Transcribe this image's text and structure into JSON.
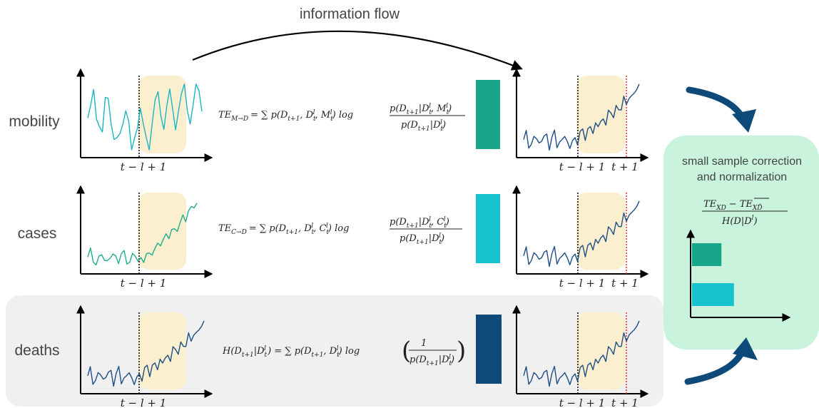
{
  "flow": {
    "label": "information flow"
  },
  "rows": [
    {
      "label": "mobility",
      "formula": "TEₘ→ᴅ = ∑ p(Dₜ₊₁, Dₜˡ, Mₜˡ) log p(Dₜ₊₁|Dₜˡ, Mₜˡ) / p(Dₜ₊₁|Dₜˡ)",
      "formula_lhs": "TE",
      "formula_lhs_sub": "M→D",
      "formula_rhs": "= ∑ p(D",
      "formula_num": "p(D",
      "formula_den": "p(D",
      "bar_color": "#17a589"
    },
    {
      "label": "cases",
      "formula_lhs": "TE",
      "formula_lhs_sub": "C→D",
      "bar_color": "#17c3cf"
    },
    {
      "label": "deaths",
      "formula_lhs": "H(D",
      "bar_color": "#0d4a7a"
    }
  ],
  "axis": {
    "lag_tick": "t − l + 1",
    "next_tick": "t + 1"
  },
  "formulas": {
    "mobility": [
      "TE",
      "M→D",
      "= ∑ p(D",
      "t+1",
      ", D",
      "t",
      "l",
      ", M",
      "t",
      "l",
      ") log",
      "p(D",
      "t+1",
      "|D",
      "t",
      "l",
      ", M",
      "t",
      "l",
      ")",
      "p(D",
      "t+1",
      "|D",
      "t",
      "l",
      ")"
    ],
    "cases": [
      "TE",
      "C→D",
      "= ∑ p(D",
      "t+1",
      ", D",
      "t",
      "l",
      ", C",
      "t",
      "l",
      ") log",
      "p(D",
      "t+1",
      "|D",
      "t",
      "l",
      ", C",
      "t",
      "l",
      ")",
      "p(D",
      "t+1",
      "|D",
      "t",
      "l",
      ")"
    ],
    "deaths": [
      "H(D",
      "t+1",
      "|D",
      "t",
      "l",
      ") = ∑ p(D",
      "t+1",
      ", D",
      "t",
      "l",
      ") log",
      "1",
      "p(D",
      "t+1",
      "|D",
      "t",
      "l",
      ")"
    ]
  },
  "correction": {
    "title_line1": "small sample correction",
    "title_line2": "and normalization",
    "num_a": "TE",
    "num_a_sub": "XD",
    "num_minus": "−",
    "num_b": "TE",
    "num_b_sub": "XD̂",
    "den": "H(D|D",
    "den_sup": "l",
    "den_close": ")",
    "bars": [
      {
        "color": "#17a589",
        "value": 0.35
      },
      {
        "color": "#17c3cf",
        "value": 0.5
      }
    ]
  },
  "colors": {
    "mobility_line": "#19b6c4",
    "cases_line": "#1fae8c",
    "deaths_line": "#1d4f86",
    "window": "#fbefcf",
    "panel_bg": "#f0f0f0",
    "correction_bg": "#c9f3dc",
    "arrow": "#0d4a7a",
    "red_marker": "#e0302a"
  }
}
